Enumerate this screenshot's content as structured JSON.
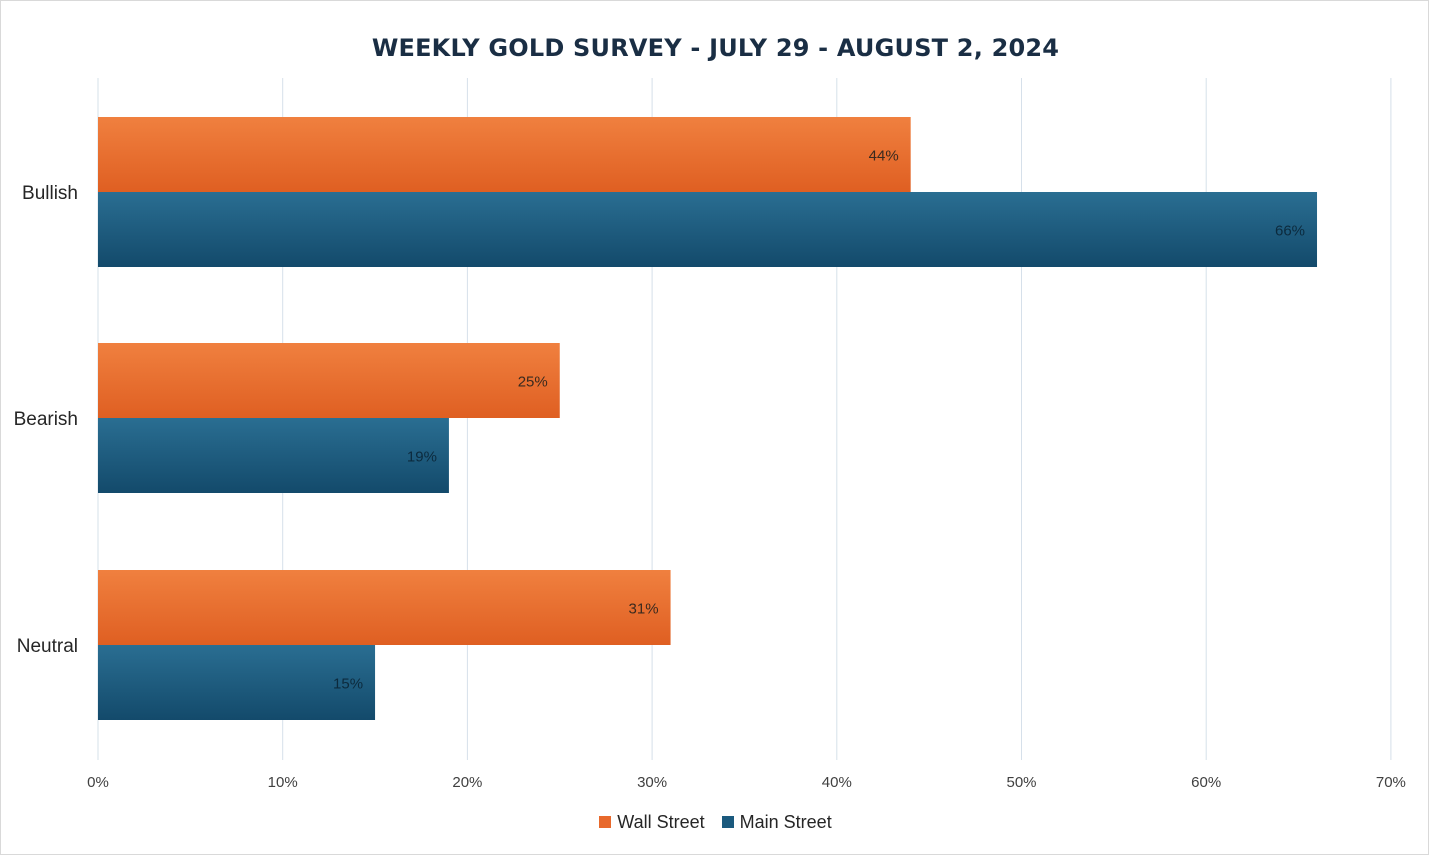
{
  "chart_data": {
    "type": "bar",
    "orientation": "horizontal",
    "title": "WEEKLY GOLD SURVEY - JULY 29 - AUGUST 2, 2024",
    "categories": [
      "Bullish",
      "Bearish",
      "Neutral"
    ],
    "series": [
      {
        "name": "Wall Street",
        "values": [
          44,
          25,
          31
        ],
        "labels": [
          "44%",
          "25%",
          "31%"
        ],
        "color": "#e8692c"
      },
      {
        "name": "Main Street",
        "values": [
          66,
          19,
          15
        ],
        "labels": [
          "66%",
          "19%",
          "15%"
        ],
        "color": "#1b5a7e"
      }
    ],
    "xlim": [
      0,
      70
    ],
    "xticks": [
      "0%",
      "10%",
      "20%",
      "30%",
      "40%",
      "50%",
      "60%",
      "70%"
    ],
    "grid": true,
    "legend": "bottom"
  }
}
